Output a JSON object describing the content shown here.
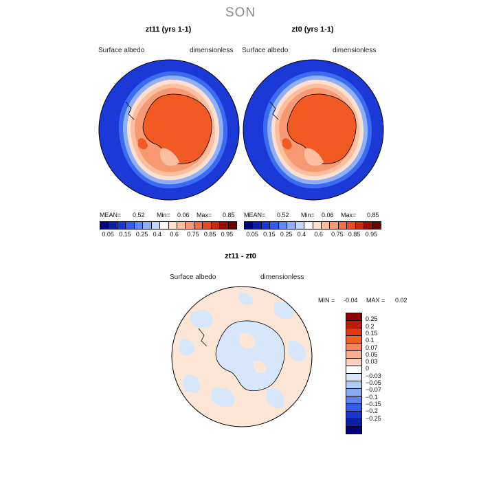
{
  "season": "SON",
  "panels": [
    {
      "title": "zt11 (yrs 1-1)",
      "var_label": "Surface albedo",
      "unit_label": "dimensionless",
      "mean_label": "MEAN=",
      "mean": "0.52",
      "min_label": "Min=",
      "min": "0.06",
      "max_label": "Max=",
      "max": "0.85"
    },
    {
      "title": "zt0 (yrs 1-1)",
      "var_label": "Surface albedo",
      "unit_label": "dimensionless",
      "mean_label": "MEAN=",
      "mean": "0.52",
      "min_label": "Min=",
      "min": "0.06",
      "max_label": "Max=",
      "max": "0.85"
    }
  ],
  "top_colorbar": {
    "colors": [
      "#00007f",
      "#0a1fa8",
      "#1539d6",
      "#2e5ef0",
      "#5b88f5",
      "#8fb0f8",
      "#c3d6fb",
      "#ffffff",
      "#fde0d0",
      "#fbbfa0",
      "#f79a73",
      "#f2703f",
      "#e84b1c",
      "#c82a0b",
      "#9a0c00",
      "#6e0000"
    ],
    "ticks": [
      "0.05",
      "0.15",
      "0.25",
      "0.4",
      "0.6",
      "0.75",
      "0.85",
      "0.95"
    ]
  },
  "diff": {
    "title": "zt11 - zt0",
    "var_label": "Surface albedo",
    "unit_label": "dimensionless",
    "min_label": "MIN =",
    "min": "-0.04",
    "max_label": "MAX =",
    "max": "0.02",
    "colors": [
      "#8b0000",
      "#c01a05",
      "#e2380f",
      "#f2601f",
      "#f7865a",
      "#fbac8d",
      "#fdd2bf",
      "#ffffff",
      "#d6e6fb",
      "#afcbf8",
      "#86aaf4",
      "#5a83ee",
      "#2f5de6",
      "#1639d0",
      "#0a1fa8",
      "#00007f"
    ],
    "ticks": [
      "0.25",
      "0.2",
      "0.15",
      "0.1",
      "0.07",
      "0.05",
      "0.03",
      "0",
      "−0.03",
      "−0.05",
      "−0.07",
      "−0.1",
      "−0.15",
      "−0.2",
      "−0.25"
    ]
  }
}
